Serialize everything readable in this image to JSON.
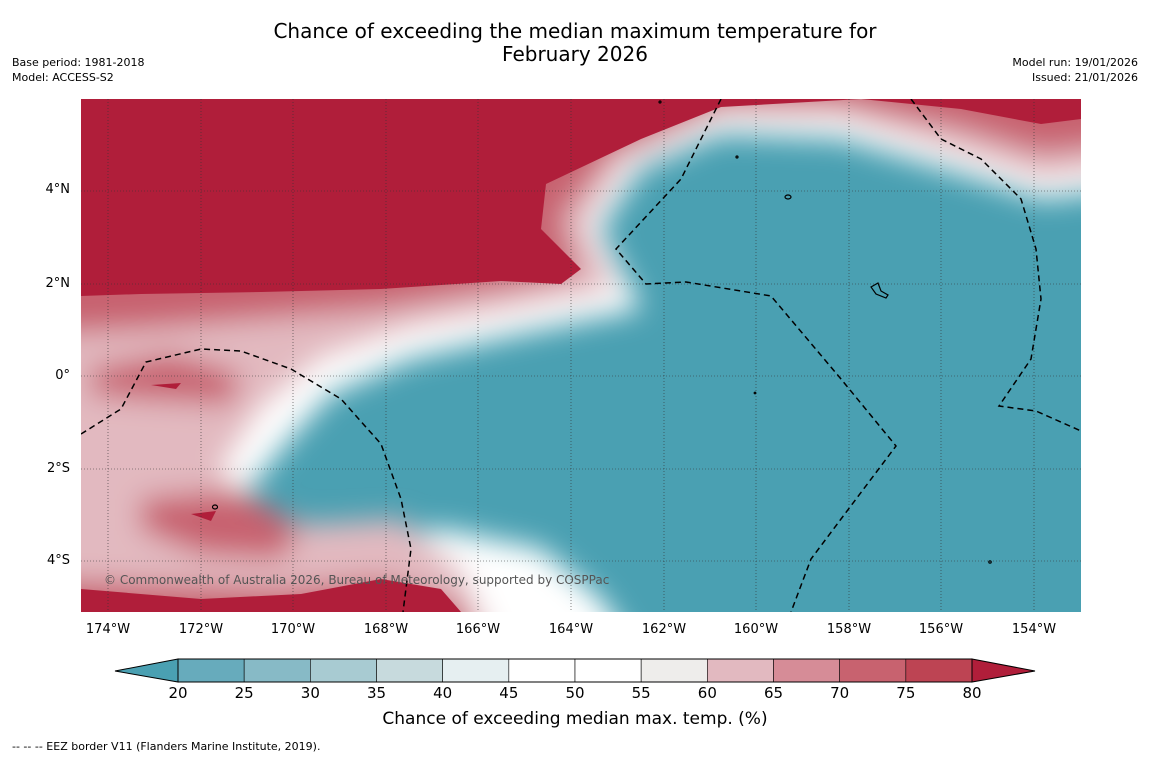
{
  "title": {
    "line1": "Chance of exceeding the median maximum temperature for",
    "line2": "February 2026"
  },
  "meta_left": {
    "base_period": "Base period: 1981-2018",
    "model": "Model: ACCESS-S2"
  },
  "meta_right": {
    "model_run": "Model run: 19/01/2026",
    "issued": "Issued: 21/01/2026"
  },
  "map": {
    "copyright": "© Commonwealth of Australia 2026, Bureau of Meteorology, supported by COSPPac",
    "lat_labels": [
      "4°N",
      "2°N",
      "0°",
      "2°S",
      "4°S"
    ],
    "lon_labels": [
      "174°W",
      "172°W",
      "170°W",
      "168°W",
      "166°W",
      "164°W",
      "162°W",
      "160°W",
      "158°W",
      "156°W",
      "154°W"
    ],
    "colors": {
      "below": "#4aa0b2",
      "above": "#b01e3a"
    }
  },
  "colorbar": {
    "ticks": [
      "20",
      "25",
      "30",
      "35",
      "40",
      "45",
      "50",
      "55",
      "60",
      "65",
      "70",
      "75",
      "80"
    ],
    "bins": [
      "#67abbc",
      "#87bac6",
      "#a8cbd2",
      "#c7dadd",
      "#e6eff1",
      "#ffffff",
      "#ffffff",
      "#eeedeb",
      "#e2b9c0",
      "#d68c97",
      "#c8626f",
      "#bd4453"
    ],
    "low_color": "#4aa0b2",
    "high_color": "#b01e3a",
    "label": "Chance of exceeding median max. temp. (%)"
  },
  "legend_note": "--  --  -- EEZ border V11 (Flanders Marine Institute, 2019)."
}
